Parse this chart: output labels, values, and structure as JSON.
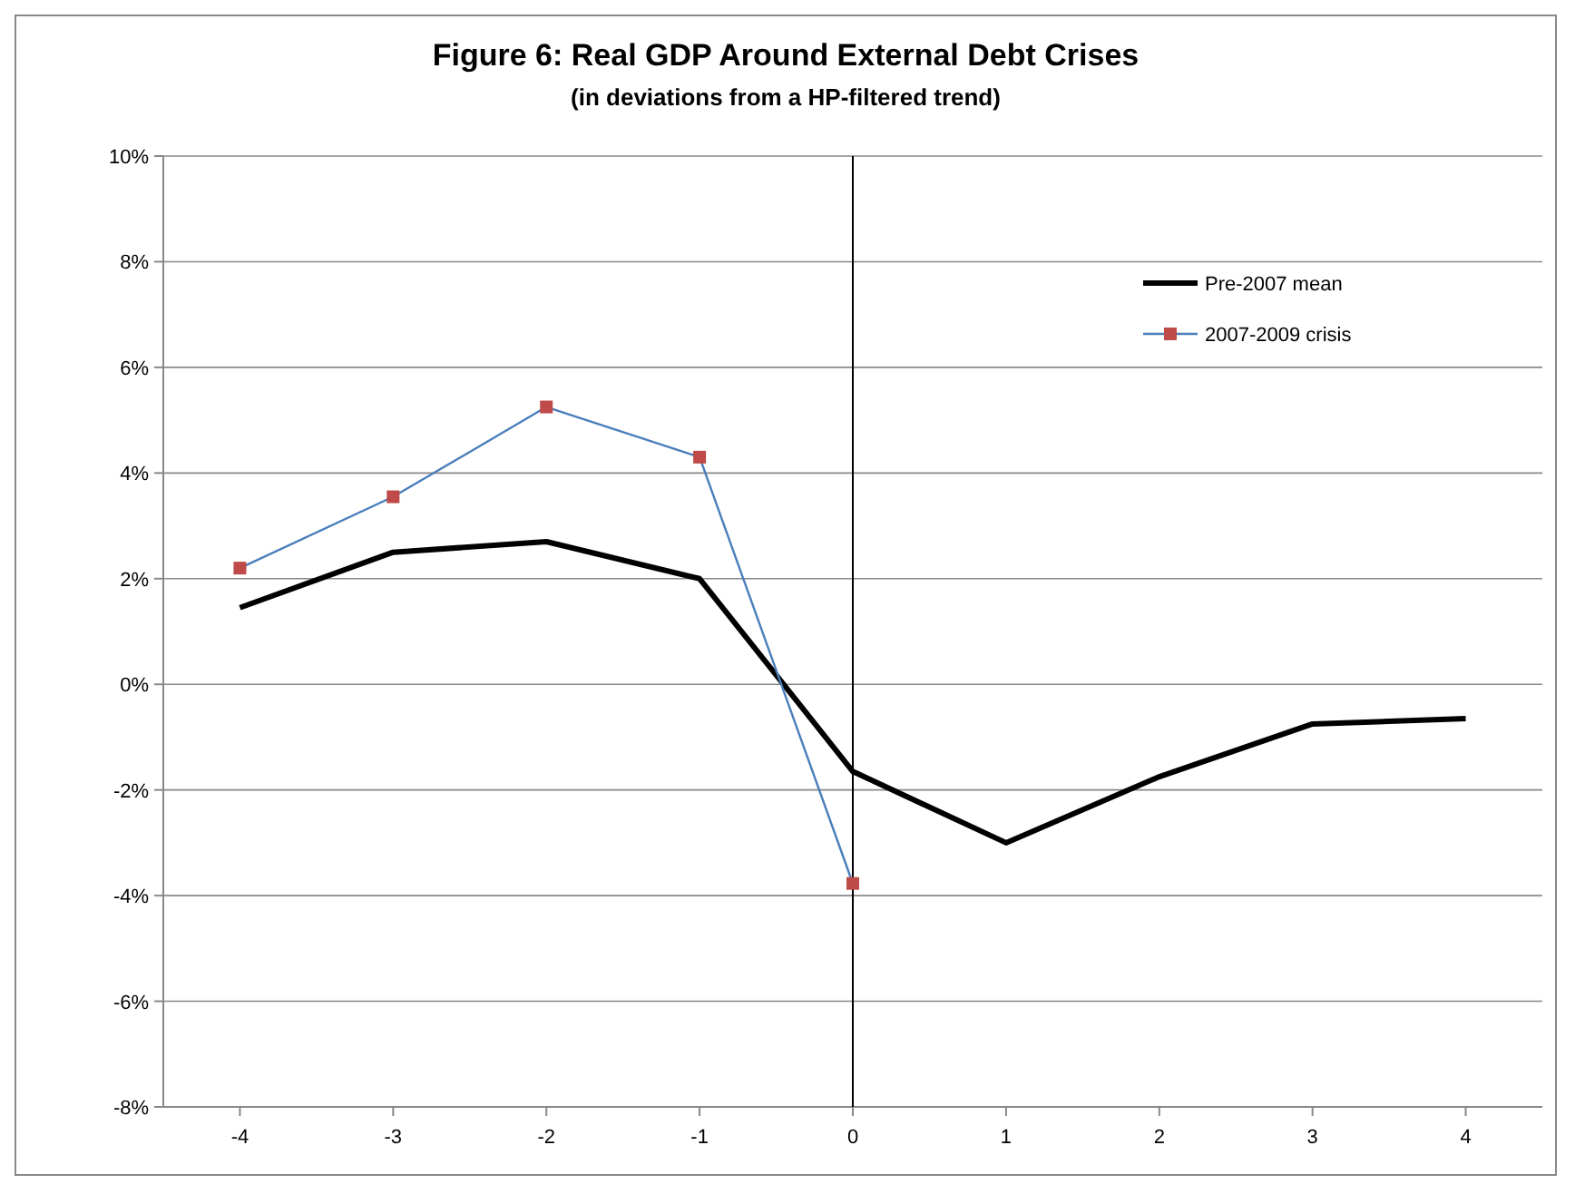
{
  "chart_data": {
    "type": "line",
    "title": "Figure 6: Real GDP Around External Debt Crises",
    "subtitle": "(in deviations from a HP-filtered trend)",
    "x": [
      -4,
      -3,
      -2,
      -1,
      0,
      1,
      2,
      3,
      4
    ],
    "xlim": [
      -4.5,
      4.5
    ],
    "xticks": [
      -4,
      -3,
      -2,
      -1,
      0,
      1,
      2,
      3,
      4
    ],
    "ylim": [
      -8,
      10
    ],
    "yticks": [
      {
        "value": -8,
        "label": "-8%"
      },
      {
        "value": -6,
        "label": "-6%"
      },
      {
        "value": -4,
        "label": "-4%"
      },
      {
        "value": -2,
        "label": "-2%"
      },
      {
        "value": 0,
        "label": "0%"
      },
      {
        "value": 2,
        "label": "2%"
      },
      {
        "value": 4,
        "label": "4%"
      },
      {
        "value": 6,
        "label": "6%"
      },
      {
        "value": 8,
        "label": "8%"
      },
      {
        "value": 10,
        "label": "10%"
      }
    ],
    "grid": "y",
    "legend": "top right",
    "ref_lines": [
      {
        "axis": "x",
        "value": 0,
        "color": "#000000"
      }
    ],
    "series": [
      {
        "name": "Pre-2007 mean",
        "color": "#000000",
        "marker": "none",
        "values": [
          1.45,
          2.5,
          2.7,
          2.0,
          -1.65,
          -3.0,
          -1.75,
          -0.75,
          -0.65
        ]
      },
      {
        "name": "2007-2009 crisis",
        "color": "#be4b48",
        "marker": "square",
        "values": [
          2.2,
          3.55,
          5.25,
          4.3,
          -3.77,
          null,
          null,
          null,
          null
        ]
      }
    ]
  }
}
